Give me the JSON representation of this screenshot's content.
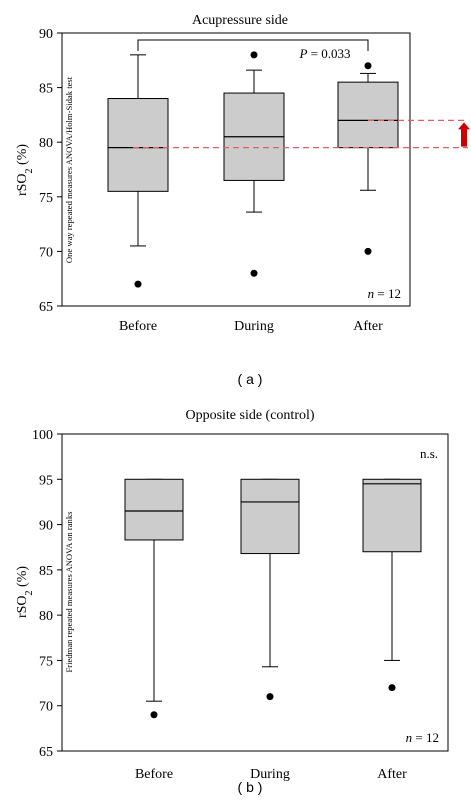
{
  "chart_data": [
    {
      "type": "box",
      "panel_label": "( a )",
      "title": "Acupressure side",
      "ylabel_base": "rSO",
      "ylabel_sub": "2",
      "ylabel_unit": " (%)",
      "ylim": [
        65,
        90
      ],
      "yticks": [
        65,
        70,
        75,
        80,
        85,
        90
      ],
      "categories": [
        "Before",
        "During",
        "After"
      ],
      "boxes": [
        {
          "whisker_low": 70.5,
          "q1": 75.5,
          "median": 79.5,
          "q3": 84.0,
          "whisker_high": 88.0,
          "outliers": [
            67.0
          ]
        },
        {
          "whisker_low": 73.6,
          "q1": 76.5,
          "median": 80.5,
          "q3": 84.5,
          "whisker_high": 86.6,
          "outliers": [
            68.0,
            88.0
          ]
        },
        {
          "whisker_low": 75.6,
          "q1": 79.5,
          "median": 82.0,
          "q3": 85.5,
          "whisker_high": 86.3,
          "outliers": [
            70.0,
            87.0
          ]
        }
      ],
      "test_note": "One way repeated measures ANOVA/Holm-Sidak test",
      "n_label": "n",
      "n_value": "= 12",
      "comparison": {
        "from": 0,
        "to": 2,
        "label_italic": "P",
        "label_value": " = 0.033"
      },
      "reference_lines": [
        79.5,
        82.0
      ],
      "arrow_color": "#cc0000",
      "box_fill": "#cccccc",
      "reference_color": "#e06060",
      "grid": false
    },
    {
      "type": "box",
      "panel_label": "( b )",
      "title": "Opposite side (control)",
      "ylabel_base": "rSO",
      "ylabel_sub": "2",
      "ylabel_unit": " (%)",
      "ylim": [
        65,
        100
      ],
      "yticks": [
        65,
        70,
        75,
        80,
        85,
        90,
        95,
        100
      ],
      "categories": [
        "Before",
        "During",
        "After"
      ],
      "boxes": [
        {
          "whisker_low": 70.5,
          "q1": 88.3,
          "median": 91.5,
          "q3": 95.0,
          "whisker_high": 95.0,
          "outliers": [
            69.0
          ]
        },
        {
          "whisker_low": 74.3,
          "q1": 86.8,
          "median": 92.5,
          "q3": 95.0,
          "whisker_high": 95.0,
          "outliers": [
            71.0
          ]
        },
        {
          "whisker_low": 75.0,
          "q1": 87.0,
          "median": 94.5,
          "q3": 95.0,
          "whisker_high": 95.0,
          "outliers": [
            72.0
          ]
        }
      ],
      "test_note": "Friedman repeated measures ANOVA on ranks",
      "n_label": "n",
      "n_value": "= 12",
      "significance": "n.s.",
      "box_fill": "#cccccc",
      "grid": false
    }
  ]
}
